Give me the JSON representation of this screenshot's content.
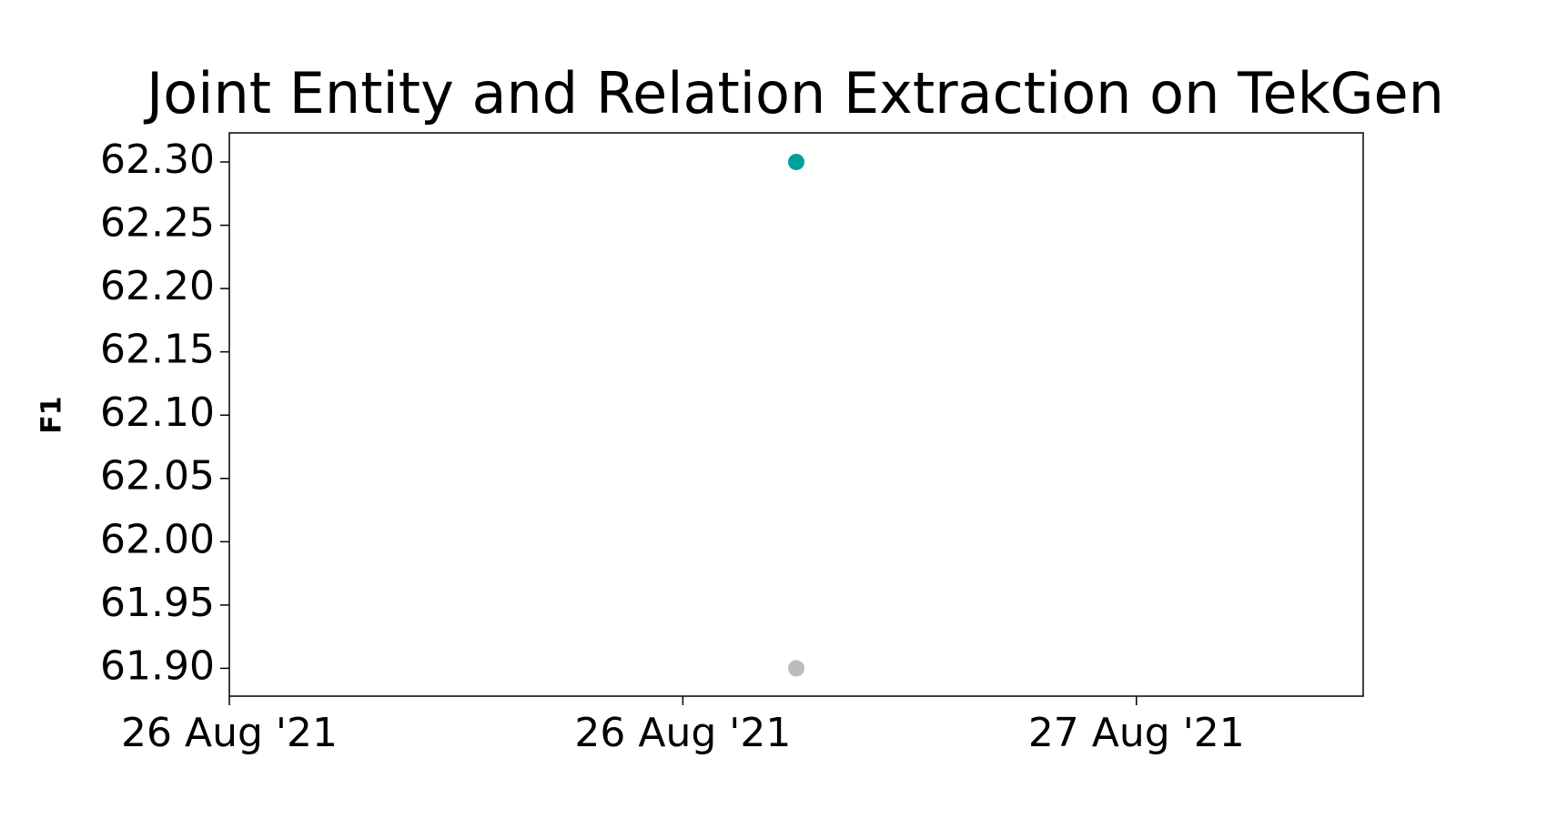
{
  "chart_data": {
    "type": "scatter",
    "title": "Joint Entity and Relation Extraction on TekGen",
    "y_label": "F1",
    "x": [
      0.625,
      0.625
    ],
    "values": [
      62.3,
      61.9
    ],
    "colors": [
      "#00a09a",
      "#bbbbbb"
    ],
    "xlim": [
      0,
      1.25
    ],
    "xticks": [
      {
        "value": 0,
        "label": "26 Aug '21"
      },
      {
        "value": 0.5,
        "label": "26 Aug '21"
      },
      {
        "value": 1,
        "label": "27 Aug '21"
      }
    ],
    "ylim": [
      61.878,
      62.323
    ],
    "yticks": [
      {
        "value": 61.9,
        "label": "61.90"
      },
      {
        "value": 61.95,
        "label": "61.95"
      },
      {
        "value": 62,
        "label": "62.00"
      },
      {
        "value": 62.05,
        "label": "62.05"
      },
      {
        "value": 62.1,
        "label": "62.10"
      },
      {
        "value": 62.15,
        "label": "62.15"
      },
      {
        "value": 62.2,
        "label": "62.20"
      },
      {
        "value": 62.25,
        "label": "62.25"
      },
      {
        "value": 62.3,
        "label": "62.30"
      }
    ],
    "grid": false
  }
}
